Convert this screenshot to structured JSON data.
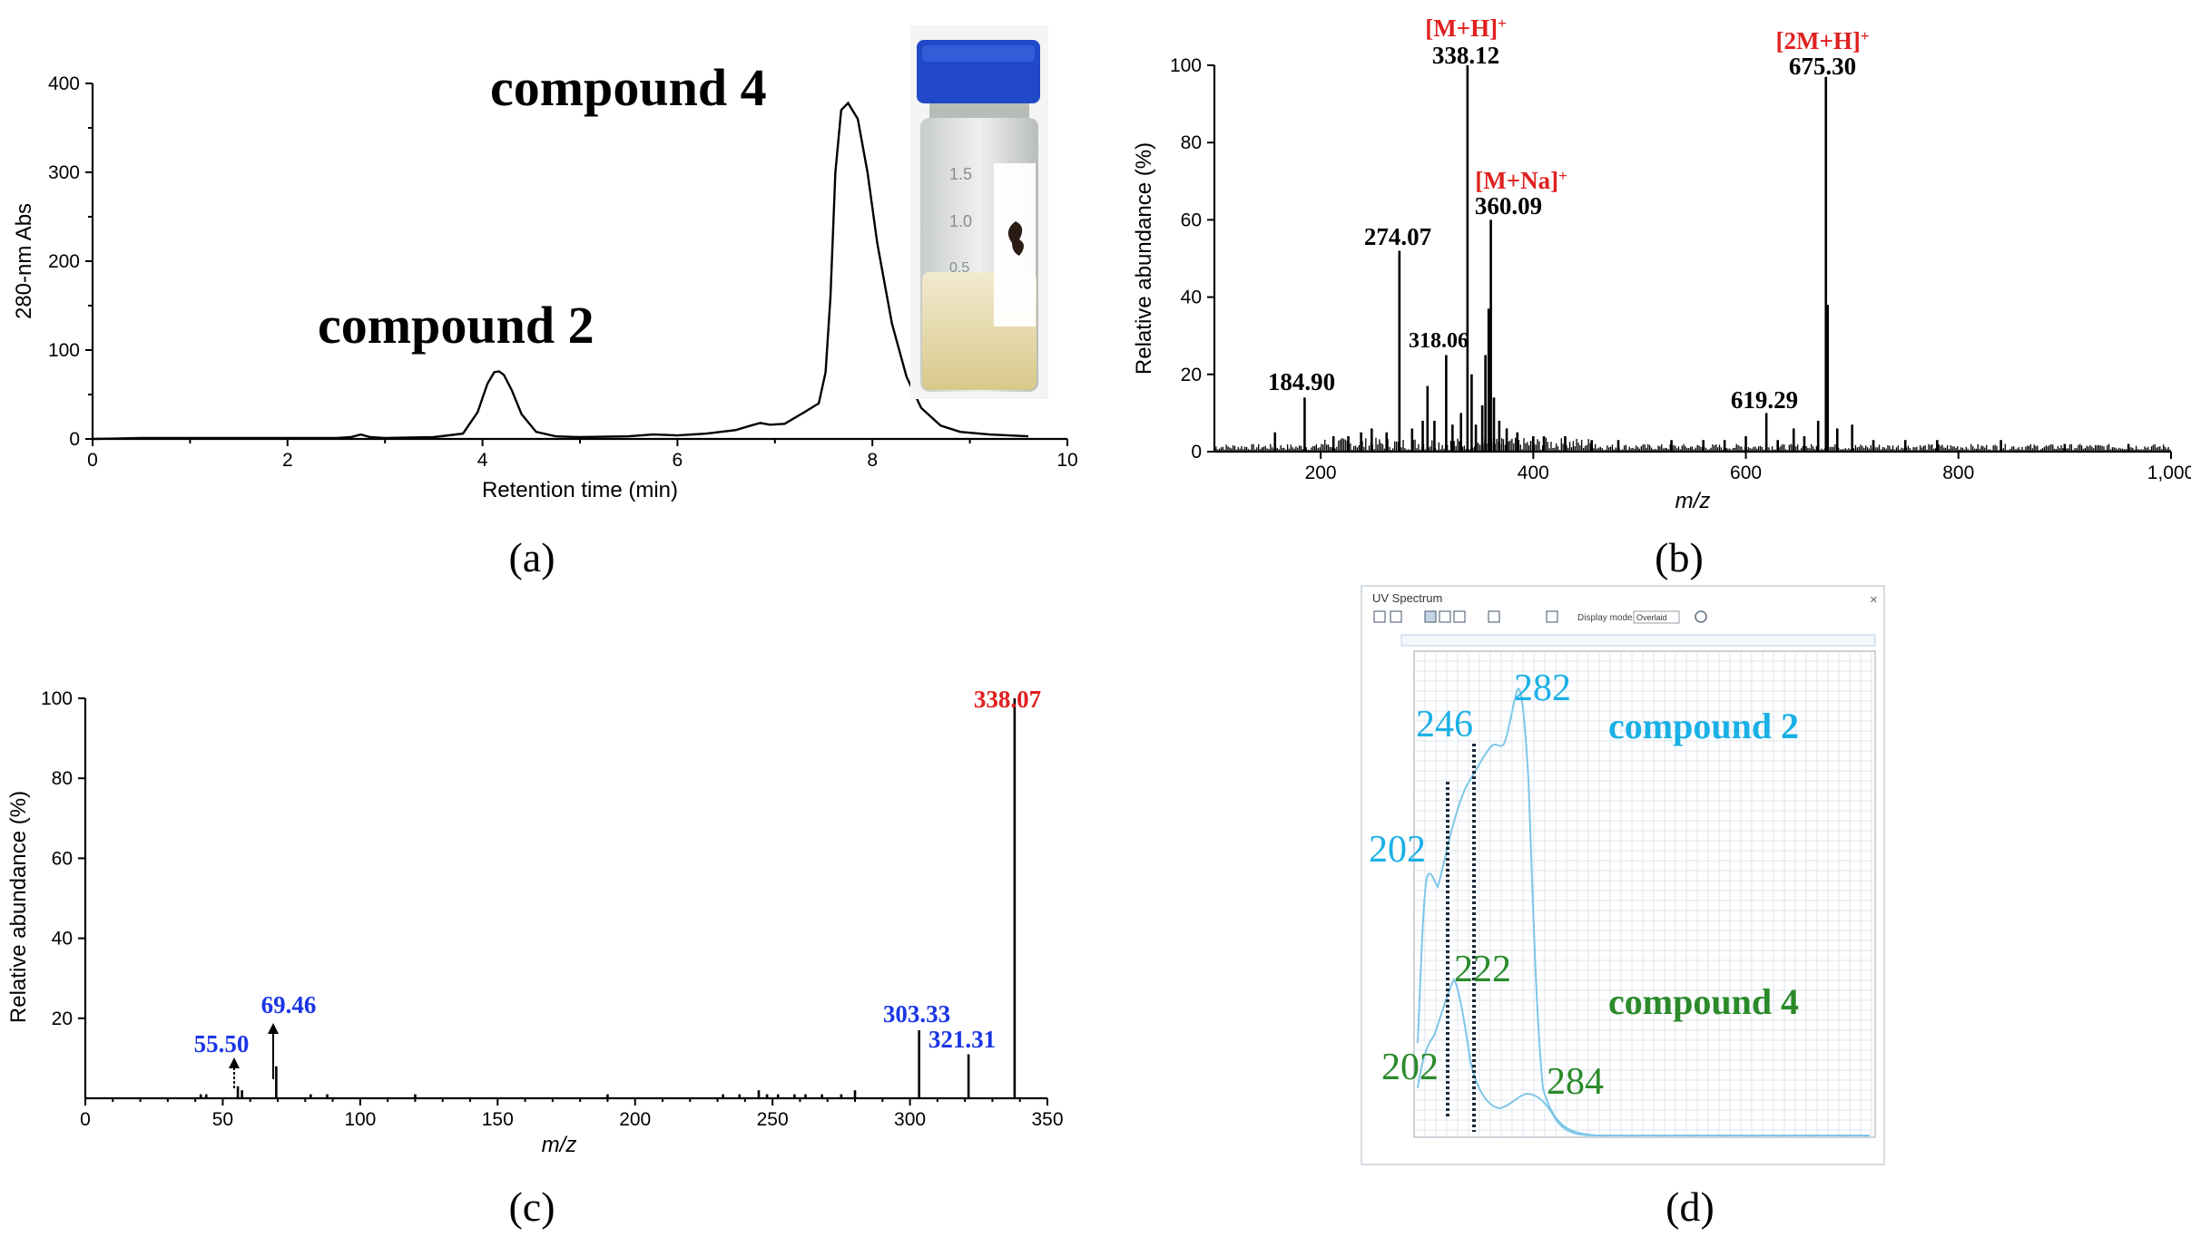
{
  "panels": {
    "a": {
      "label": "(a)"
    },
    "b": {
      "label": "(b)"
    },
    "c": {
      "label": "(c)"
    },
    "d": {
      "label": "(d)"
    }
  },
  "chart_data": [
    {
      "id": "a",
      "type": "line",
      "xlabel": "Retention time (min)",
      "ylabel": "280-nm Abs",
      "xlim": [
        0,
        10
      ],
      "ylim": [
        0,
        400
      ],
      "xticks": [
        0,
        2,
        4,
        6,
        8,
        10
      ],
      "yticks": [
        0,
        100,
        200,
        300,
        400
      ],
      "series": [
        {
          "x": [
            0,
            0.5,
            1,
            1.5,
            2,
            2.5,
            2.65,
            2.75,
            2.85,
            3,
            3.5,
            3.8,
            3.95,
            4.05,
            4.12,
            4.17,
            4.22,
            4.3,
            4.4,
            4.55,
            4.75,
            5,
            5.5,
            5.75,
            6,
            6.3,
            6.6,
            6.75,
            6.85,
            6.95,
            7.1,
            7.3,
            7.45,
            7.52,
            7.57,
            7.62,
            7.68,
            7.75,
            7.85,
            7.95,
            8.05,
            8.2,
            8.35,
            8.5,
            8.7,
            8.9,
            9.2,
            9.6
          ],
          "y": [
            0,
            1,
            1,
            1,
            1,
            1,
            2,
            5,
            2,
            1,
            2,
            6,
            30,
            62,
            75,
            76,
            72,
            55,
            28,
            8,
            3,
            2,
            3,
            5,
            4,
            6,
            10,
            15,
            18,
            16,
            17,
            30,
            40,
            75,
            160,
            300,
            370,
            378,
            360,
            300,
            220,
            130,
            70,
            35,
            15,
            8,
            5,
            3
          ]
        }
      ],
      "annotations": [
        "compound 4",
        "compound 2"
      ]
    },
    {
      "id": "b",
      "type": "bar",
      "xlabel": "m/z",
      "ylabel": "Relative abundance (%)",
      "xlim": [
        100,
        1000
      ],
      "ylim": [
        0,
        100
      ],
      "xticks": [
        200,
        400,
        600,
        800,
        1000
      ],
      "xtick_labels": [
        "200",
        "400",
        "600",
        "800",
        "1,000"
      ],
      "yticks": [
        0,
        20,
        40,
        60,
        80,
        100
      ],
      "peaks": [
        [
          157,
          5
        ],
        [
          184.9,
          14
        ],
        [
          212,
          4
        ],
        [
          226,
          4
        ],
        [
          238,
          5
        ],
        [
          248,
          6
        ],
        [
          262,
          5
        ],
        [
          274.07,
          52
        ],
        [
          286,
          6
        ],
        [
          296,
          8
        ],
        [
          300.5,
          17
        ],
        [
          307,
          8
        ],
        [
          318.06,
          25
        ],
        [
          324,
          7
        ],
        [
          332,
          10
        ],
        [
          338.12,
          100
        ],
        [
          342,
          20
        ],
        [
          346,
          7
        ],
        [
          352,
          12
        ],
        [
          355,
          25
        ],
        [
          358,
          37
        ],
        [
          360.09,
          60
        ],
        [
          363,
          14
        ],
        [
          368,
          8
        ],
        [
          375,
          6
        ],
        [
          385,
          5
        ],
        [
          400,
          4
        ],
        [
          410,
          4
        ],
        [
          430,
          4
        ],
        [
          455,
          3
        ],
        [
          480,
          3
        ],
        [
          530,
          3
        ],
        [
          560,
          3
        ],
        [
          580,
          3
        ],
        [
          600,
          4
        ],
        [
          619.29,
          10
        ],
        [
          630,
          3
        ],
        [
          645,
          6
        ],
        [
          655,
          4
        ],
        [
          668,
          8
        ],
        [
          675.3,
          97
        ],
        [
          677,
          38
        ],
        [
          686,
          6
        ],
        [
          700,
          7
        ],
        [
          720,
          3
        ],
        [
          750,
          3
        ],
        [
          780,
          3
        ],
        [
          840,
          3
        ],
        [
          900,
          2
        ],
        [
          960,
          2
        ]
      ],
      "labels": [
        {
          "text": "[M+H]",
          "sup": "+",
          "value": "338.12"
        },
        {
          "text": "[2M+H]",
          "sup": "+",
          "value": "675.30"
        },
        {
          "text": "[M+Na]",
          "sup": "+",
          "value": "360.09"
        },
        {
          "value": "274.07"
        },
        {
          "value": "318.06"
        },
        {
          "value": "184.90"
        },
        {
          "value": "619.29"
        }
      ]
    },
    {
      "id": "c",
      "type": "bar",
      "xlabel": "m/z",
      "ylabel": "Relative abundance (%)",
      "xlim": [
        0,
        350
      ],
      "ylim": [
        0,
        100
      ],
      "xticks": [
        0,
        50,
        100,
        150,
        200,
        250,
        300,
        350
      ],
      "yticks": [
        20,
        40,
        60,
        80,
        100
      ],
      "peaks": [
        [
          42,
          1
        ],
        [
          44,
          1
        ],
        [
          55.5,
          3
        ],
        [
          57,
          2
        ],
        [
          69.46,
          8
        ],
        [
          82,
          1
        ],
        [
          88,
          1
        ],
        [
          120,
          1
        ],
        [
          190,
          1
        ],
        [
          232,
          1
        ],
        [
          238,
          1
        ],
        [
          245,
          2
        ],
        [
          248,
          1
        ],
        [
          252,
          1
        ],
        [
          258,
          1
        ],
        [
          262,
          1
        ],
        [
          268,
          1
        ],
        [
          275,
          1
        ],
        [
          280,
          2
        ],
        [
          303.33,
          17
        ],
        [
          321.31,
          11
        ],
        [
          338.07,
          100
        ]
      ],
      "labels": [
        {
          "value": "338.07"
        },
        {
          "value": "69.46"
        },
        {
          "value": "55.50"
        },
        {
          "value": "303.33"
        },
        {
          "value": "321.31"
        }
      ]
    },
    {
      "id": "d",
      "type": "line",
      "window_title": "UV Spectrum",
      "display_mode_label": "Display mode:",
      "display_mode_value": "Overlaid",
      "series": [
        {
          "name": "compound 2",
          "color": "#1ab0e6",
          "maxima": [
            "246",
            "282",
            "202"
          ]
        },
        {
          "name": "compound 4",
          "color": "#2a8a2a",
          "maxima": [
            "222",
            "202",
            "284"
          ]
        }
      ]
    }
  ]
}
